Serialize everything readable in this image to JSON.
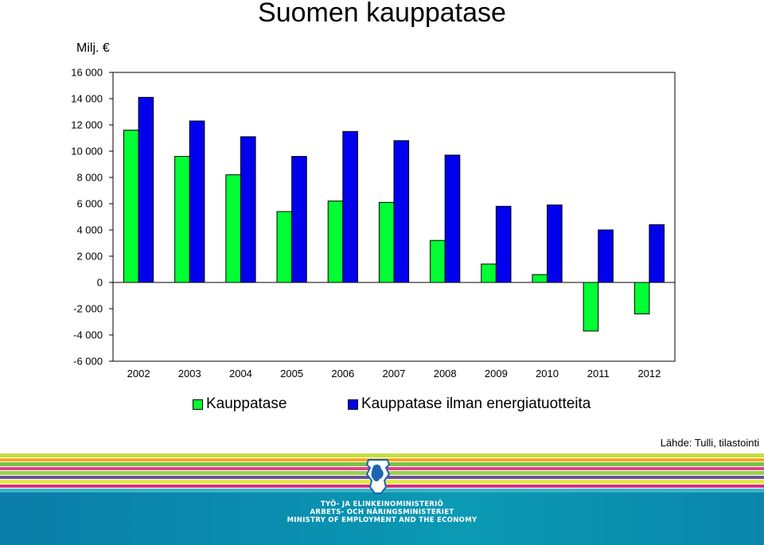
{
  "header": {
    "title": "Suomen kauppatase",
    "unit": "Milj. €"
  },
  "colors": {
    "series1": "#00ff33",
    "series2": "#0000ee",
    "grid": "#000000",
    "footer_blue": "#0a8fb0"
  },
  "chart_data": {
    "type": "bar",
    "title": "Suomen kauppatase",
    "ylabel": "Milj. €",
    "ylim": [
      -6000,
      16000
    ],
    "yticks": [
      16000,
      14000,
      12000,
      10000,
      8000,
      6000,
      4000,
      2000,
      0,
      -2000,
      -4000,
      -6000
    ],
    "ytick_labels": [
      "16 000",
      "14 000",
      "12 000",
      "10 000",
      "8 000",
      "6 000",
      "4 000",
      "2 000",
      "0",
      "-2 000",
      "-4 000",
      "-6 000"
    ],
    "categories": [
      "2002",
      "2003",
      "2004",
      "2005",
      "2006",
      "2007",
      "2008",
      "2009",
      "2010",
      "2011",
      "2012"
    ],
    "series": [
      {
        "name": "Kauppatase",
        "values": [
          11600,
          9600,
          8200,
          5400,
          6200,
          6100,
          3200,
          1400,
          600,
          -3700,
          -2400
        ]
      },
      {
        "name": "Kauppatase ilman energiatuotteita",
        "values": [
          14100,
          12300,
          11100,
          9600,
          11500,
          10800,
          9700,
          5800,
          5900,
          4000,
          4400
        ]
      }
    ],
    "grid": false,
    "legend_position": "bottom"
  },
  "legend": {
    "items": [
      {
        "label": "Kauppatase"
      },
      {
        "label": "Kauppatase ilman energiatuotteita"
      }
    ]
  },
  "source": "Lähde: Tulli, tilastointi",
  "footer": {
    "line1": "TYÖ- JA ELINKEINOMINISTERIÖ",
    "line2": "ARBETS- OCH NÄRINGSMINISTERIET",
    "line3": "MINISTRY OF EMPLOYMENT AND THE ECONOMY"
  }
}
